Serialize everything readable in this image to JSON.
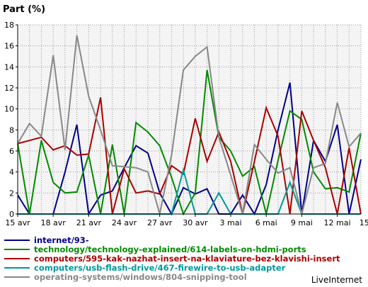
{
  "chart_data": {
    "type": "line",
    "ylabel": "Part (%)",
    "ylim": [
      0,
      18
    ],
    "yticks": [
      0,
      2,
      4,
      6,
      8,
      10,
      12,
      14,
      16,
      18
    ],
    "grid": true,
    "legend_placement": "bottom-left",
    "credit": "LiveInternet",
    "x_start": "15 avr",
    "x_end": "15 mai",
    "x_tick_labels": [
      "15 avr",
      "18 avr",
      "21 avr",
      "24 avr",
      "27 avr",
      "30 avr",
      "3 mai",
      "6 mai",
      "9 mai",
      "12 mai",
      "15 mai"
    ],
    "x_tick_every": 3,
    "series": [
      {
        "name": "internet/93-",
        "color": "#00008b",
        "values": [
          1.8,
          0,
          0,
          0,
          4.0,
          8.5,
          0,
          1.8,
          2.2,
          4.4,
          6.5,
          5.8,
          2.0,
          0,
          2.5,
          1.9,
          2.4,
          0,
          0,
          1.8,
          0,
          2.8,
          8.0,
          12.5,
          0,
          7.0,
          5.0,
          8.5,
          0,
          5.2
        ]
      },
      {
        "name": "technology/technology-explained/614-labels-on-hdmi-ports",
        "color": "#008b00",
        "values": [
          6.7,
          0,
          7.0,
          3.0,
          2.0,
          2.1,
          5.6,
          0,
          6.6,
          0,
          8.7,
          7.8,
          6.5,
          3.5,
          0,
          2.0,
          13.7,
          7.3,
          6.0,
          3.6,
          4.5,
          0,
          5.1,
          9.8,
          9.0,
          4.0,
          2.4,
          2.5,
          2.1,
          7.7
        ]
      },
      {
        "name": "computers/595-kak-nazhat-insert-na-klaviature-bez-klavishi-insert",
        "color": "#aa0000",
        "values": [
          6.7,
          7.0,
          7.3,
          6.1,
          6.5,
          5.6,
          5.7,
          11.1,
          0,
          4.3,
          2.0,
          2.2,
          1.9,
          4.6,
          3.8,
          9.1,
          5.0,
          7.8,
          5.0,
          0,
          5.0,
          10.1,
          7.4,
          0,
          9.8,
          7.0,
          4.4,
          0,
          6.3,
          0
        ]
      },
      {
        "name": "computers/usb-flash-drive/467-firewire-to-usb-adapter",
        "color": "#009999",
        "values": [
          0,
          0,
          0,
          0,
          0,
          0,
          0,
          0,
          0,
          0,
          0,
          0,
          0,
          0,
          4.2,
          0,
          0,
          2.0,
          0,
          0,
          0,
          0,
          0,
          3.0,
          0,
          0,
          0,
          0,
          0,
          0
        ]
      },
      {
        "name": "operating-systems/windows/804-snipping-tool",
        "color": "#888888",
        "values": [
          6.7,
          8.6,
          7.4,
          15.1,
          6.1,
          17.0,
          11.2,
          8.0,
          4.6,
          4.5,
          4.4,
          4.0,
          0,
          5.6,
          13.7,
          15.0,
          15.9,
          7.3,
          3.7,
          0,
          6.6,
          5.2,
          3.9,
          4.4,
          0,
          4.4,
          4.8,
          10.6,
          6.4,
          7.7
        ]
      }
    ]
  }
}
